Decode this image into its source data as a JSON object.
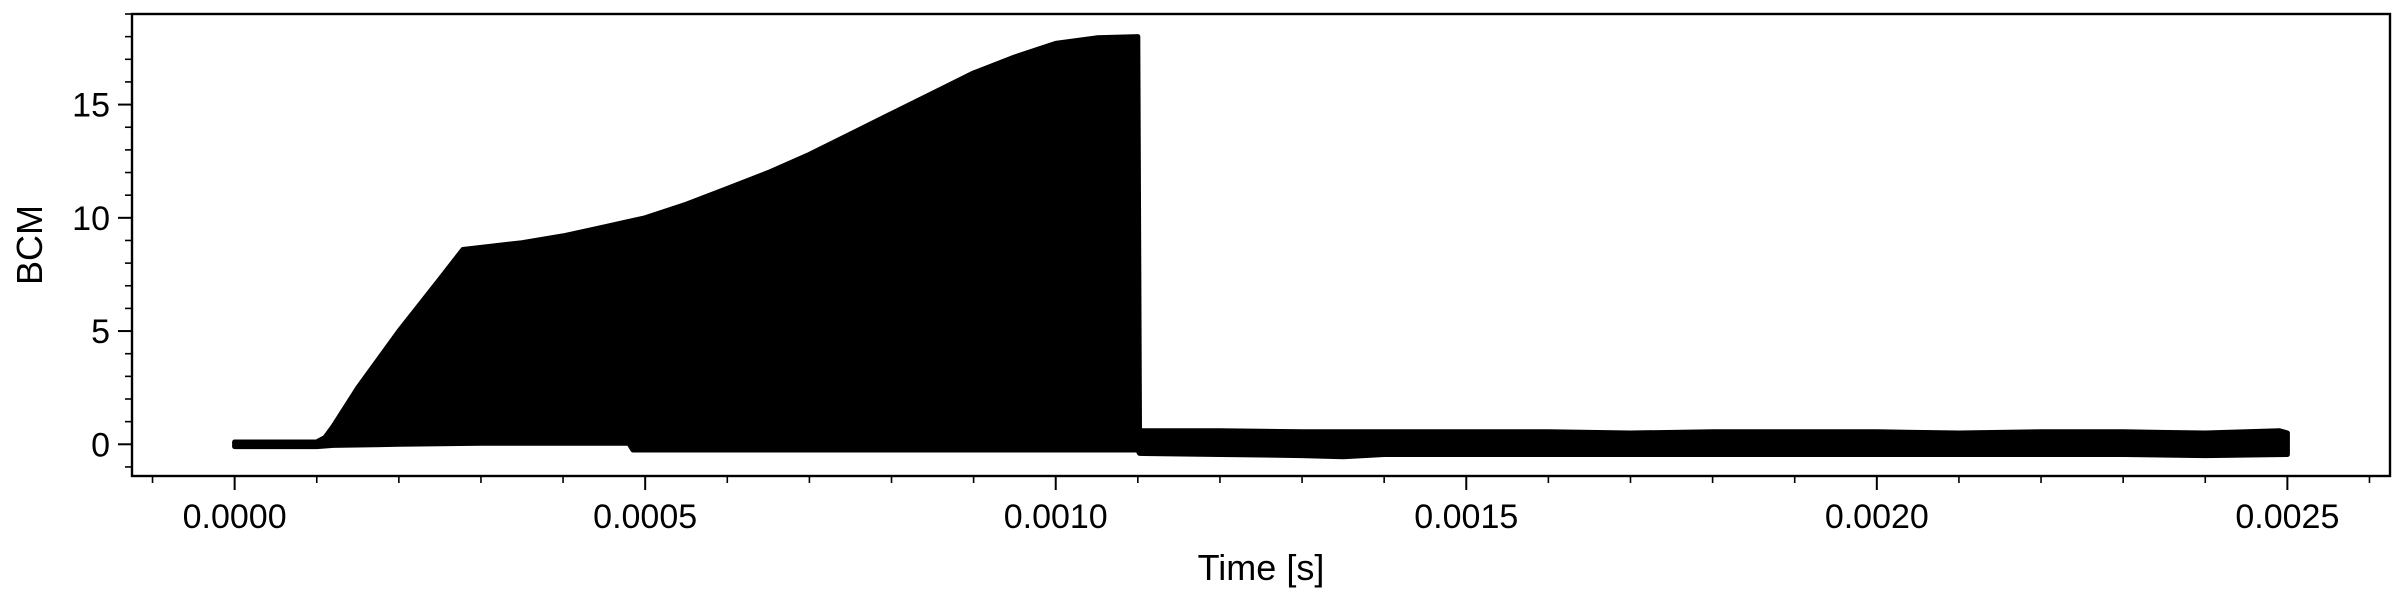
{
  "chart_data": {
    "type": "area",
    "xlabel": "Time [s]",
    "ylabel": "BCM",
    "xlim": [
      -0.000125,
      0.002625
    ],
    "ylim": [
      -1.4,
      19
    ],
    "grid": false,
    "x_ticks": [
      {
        "value": 0.0,
        "label": "0.0000"
      },
      {
        "value": 0.0005,
        "label": "0.0005"
      },
      {
        "value": 0.001,
        "label": "0.0010"
      },
      {
        "value": 0.0015,
        "label": "0.0015"
      },
      {
        "value": 0.002,
        "label": "0.0020"
      },
      {
        "value": 0.0025,
        "label": "0.0025"
      }
    ],
    "y_ticks": [
      {
        "value": 0,
        "label": "0"
      },
      {
        "value": 5,
        "label": "5"
      },
      {
        "value": 10,
        "label": "10"
      },
      {
        "value": 15,
        "label": "15"
      }
    ],
    "series": [
      {
        "color": "#000000",
        "upper_envelope": {
          "x": [
            0.0,
            0.0001,
            0.00011,
            0.00012,
            0.00015,
            0.0002,
            0.00025,
            0.000278,
            0.00035,
            0.0004,
            0.00045,
            0.0005,
            0.00055,
            0.0006,
            0.00065,
            0.0007,
            0.00075,
            0.0008,
            0.00085,
            0.0009,
            0.00095,
            0.001,
            0.00105,
            0.0011,
            0.001102,
            0.0012,
            0.0013,
            0.0014,
            0.0015,
            0.0016,
            0.0017,
            0.0018,
            0.0019,
            0.002,
            0.0021,
            0.0022,
            0.0023,
            0.0024,
            0.00249,
            0.0025
          ],
          "y": [
            0.1,
            0.1,
            0.3,
            0.8,
            2.5,
            5.0,
            7.3,
            8.6,
            8.9,
            9.2,
            9.6,
            10.0,
            10.6,
            11.3,
            12.0,
            12.8,
            13.7,
            14.6,
            15.5,
            16.4,
            17.1,
            17.7,
            17.95,
            18.0,
            0.6,
            0.6,
            0.55,
            0.55,
            0.55,
            0.55,
            0.5,
            0.55,
            0.55,
            0.55,
            0.5,
            0.55,
            0.55,
            0.5,
            0.6,
            0.5
          ]
        },
        "lower_envelope": {
          "x": [
            0.0,
            0.0001,
            0.00012,
            0.0002,
            0.0003,
            0.0004,
            0.00048,
            0.000485,
            0.0006,
            0.0007,
            0.0008,
            0.0009,
            0.001,
            0.0011,
            0.001102,
            0.0012,
            0.0013,
            0.00135,
            0.0014,
            0.0015,
            0.0016,
            0.0017,
            0.0018,
            0.0019,
            0.002,
            0.0021,
            0.0022,
            0.0023,
            0.0024,
            0.0025
          ],
          "y": [
            -0.1,
            -0.1,
            -0.05,
            0.0,
            0.05,
            0.05,
            0.05,
            -0.25,
            -0.25,
            -0.25,
            -0.25,
            -0.25,
            -0.25,
            -0.25,
            -0.4,
            -0.45,
            -0.5,
            -0.55,
            -0.45,
            -0.45,
            -0.45,
            -0.45,
            -0.45,
            -0.45,
            -0.45,
            -0.45,
            -0.45,
            -0.45,
            -0.5,
            -0.45
          ]
        }
      }
    ]
  }
}
